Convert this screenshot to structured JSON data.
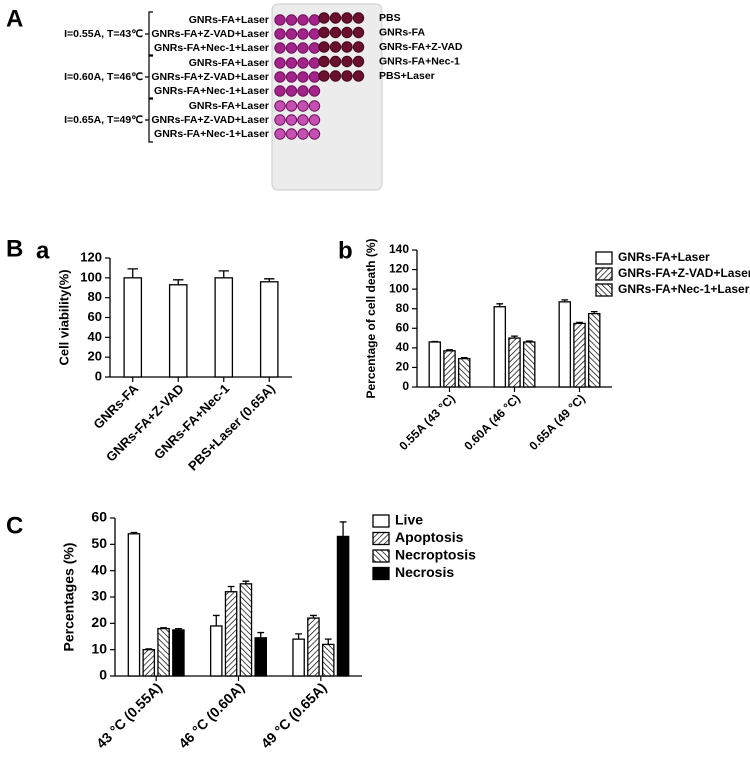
{
  "panel_labels": [
    "A",
    "B",
    "C"
  ],
  "panel_a": {
    "groups": [
      {
        "condition": "I=0.55A, T=43℃",
        "rows": [
          "GNRs-FA+Laser",
          "GNRs-FA+Z-VAD+Laser",
          "GNRs-FA+Nec-1+Laser"
        ]
      },
      {
        "condition": "I=0.60A, T=46℃",
        "rows": [
          "GNRs-FA+Laser",
          "GNRs-FA+Z-VAD+Laser",
          "GNRs-FA+Nec-1+Laser"
        ]
      },
      {
        "condition": "I=0.65A, T=49℃",
        "rows": [
          "GNRs-FA+Laser",
          "GNRs-FA+Z-VAD+Laser",
          "GNRs-FA+Nec-1+Laser"
        ]
      }
    ],
    "controls": [
      "PBS",
      "GNRs-FA",
      "GNRs-FA+Z-VAD",
      "GNRs-FA+Nec-1",
      "PBS+Laser"
    ]
  },
  "chart_data": [
    {
      "type": "bar",
      "panel": "a",
      "ylabel": "Cell viability(%)",
      "categories": [
        "GNRs-FA",
        "GNRs-FA+Z-VAD",
        "GNRs-FA+Nec-1",
        "PBS+Laser (0.65A)"
      ],
      "values": [
        100,
        93,
        100,
        96
      ],
      "errors": [
        9,
        5,
        7,
        3
      ],
      "color": "#ffffff",
      "ylim": [
        0,
        120
      ],
      "yticks": [
        0,
        20,
        40,
        60,
        80,
        100,
        120
      ]
    },
    {
      "type": "grouped-bar",
      "panel": "b",
      "ylabel": "Percentage of cell death (%)",
      "categories": [
        "0.55A (43 °C)",
        "0.60A (46 °C)",
        "0.65A (49 °C)"
      ],
      "series": [
        {
          "name": "GNRs-FA+Laser",
          "color": "#ffffff",
          "values": [
            46,
            82,
            87
          ],
          "errors": [
            0.5,
            3,
            2
          ]
        },
        {
          "name": "GNRs-FA+Z-VAD+Laser",
          "color": "#000000",
          "hatch": "forward",
          "values": [
            37,
            50,
            65
          ],
          "errors": [
            1,
            2,
            1
          ]
        },
        {
          "name": "GNRs-FA+Nec-1+Laser",
          "color": "#000000",
          "hatch": "backward",
          "values": [
            29,
            46,
            75
          ],
          "errors": [
            1,
            1,
            2
          ]
        }
      ],
      "ylim": [
        0,
        140
      ],
      "yticks": [
        0,
        20,
        40,
        60,
        80,
        100,
        120,
        140
      ],
      "legend": "upper right"
    },
    {
      "type": "grouped-bar",
      "panel": "C",
      "ylabel": "Percentages (%)",
      "categories": [
        "43 °C (0.55A)",
        "46 °C (0.60A)",
        "49 °C (0.65A)"
      ],
      "series": [
        {
          "name": "Live",
          "color": "#ffffff",
          "values": [
            54,
            19,
            14
          ],
          "errors": [
            0.5,
            4,
            2
          ]
        },
        {
          "name": "Apoptosis",
          "color": "#000000",
          "hatch": "forward",
          "values": [
            10,
            32,
            22
          ],
          "errors": [
            0.3,
            2,
            1
          ]
        },
        {
          "name": "Necroptosis",
          "color": "#000000",
          "hatch": "backward",
          "values": [
            18,
            35,
            12
          ],
          "errors": [
            0.3,
            1,
            2
          ]
        },
        {
          "name": "Necrosis",
          "color": "#000000",
          "values": [
            17.5,
            14.5,
            53
          ],
          "errors": [
            0.5,
            2,
            5.5
          ]
        }
      ],
      "ylim": [
        0,
        60
      ],
      "yticks": [
        0,
        10,
        20,
        30,
        40,
        50,
        60
      ],
      "legend": "upper right"
    }
  ]
}
